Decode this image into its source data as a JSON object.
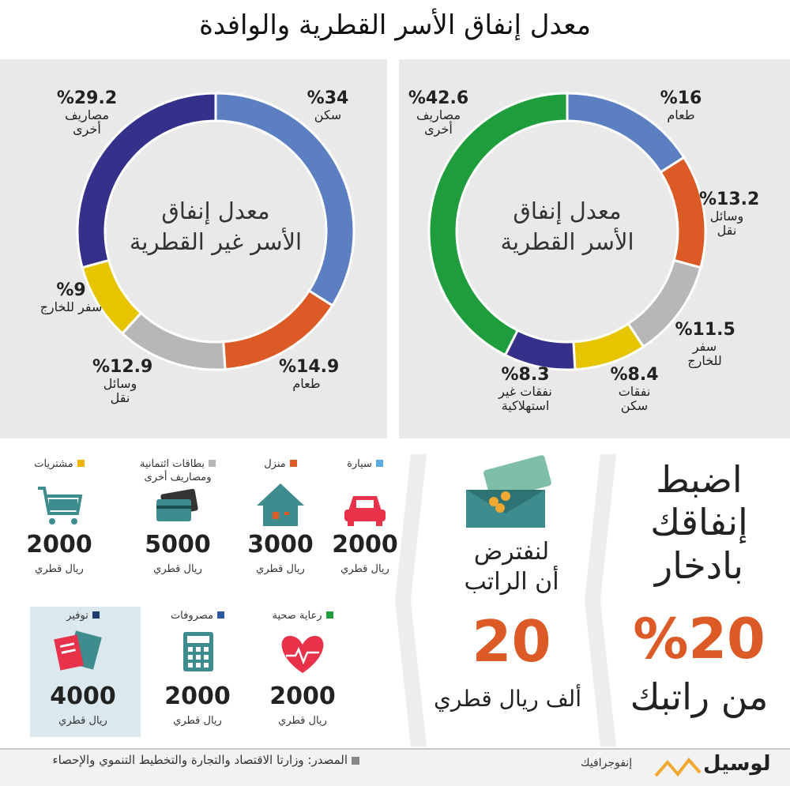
{
  "title": "معدل إنفاق الأسر القطرية والوافدة",
  "chart_data": [
    {
      "type": "pie",
      "donut": true,
      "title": [
        "معدل إنفاق",
        "الأسر غير القطرية"
      ],
      "categories": [
        "سكن",
        "طعام",
        "وسائل نقل",
        "سفر للخارج",
        "مصاريف أخرى"
      ],
      "values": [
        34,
        14.9,
        12.9,
        9,
        29.2
      ],
      "value_labels": [
        "%34",
        "%14.9",
        "%12.9",
        "%9",
        "%29.2"
      ],
      "colors": [
        "#5b7fc1",
        "#dc5a26",
        "#b9b6b9",
        "#e7c400",
        "#35318b"
      ]
    },
    {
      "type": "pie",
      "donut": true,
      "title": [
        "معدل إنفاق",
        "الأسر القطرية"
      ],
      "categories": [
        "طعام",
        "وسائل نقل",
        "سفر للخارج",
        "نفقات سكن",
        "نفقات غير استهلاكية",
        "مصاريف أخرى"
      ],
      "values": [
        16,
        13.2,
        11.5,
        8.4,
        8.3,
        42.6
      ],
      "value_labels": [
        "%16",
        "%13.2",
        "%11.5",
        "%8.4",
        "%8.3",
        "%42.6"
      ],
      "colors": [
        "#5b7fc1",
        "#dc5a26",
        "#b9b6b9",
        "#e7c400",
        "#35318b",
        "#1f9c3b"
      ]
    }
  ],
  "budget": {
    "items": [
      {
        "name": "سيارة",
        "color": "#5aaadf",
        "amount": 2000,
        "unit": "ريال قطري"
      },
      {
        "name": "منزل",
        "color": "#dc5a26",
        "amount": 3000,
        "unit": "ريال قطري"
      },
      {
        "name": "بطاقات ائتمانية ومصاريف أخرى",
        "color": "#b9b6b9",
        "amount": 5000,
        "unit": "ريال قطري"
      },
      {
        "name": "مشتريات",
        "color": "#f0b300",
        "amount": 2000,
        "unit": "ريال قطري"
      },
      {
        "name": "رعاية صحية",
        "color": "#1f9c3b",
        "amount": 2000,
        "unit": "ريال قطري"
      },
      {
        "name": "مصروفات",
        "color": "#2b59a4",
        "amount": 2000,
        "unit": "ريال قطري"
      },
      {
        "name": "توفير",
        "color": "#1d3b6e",
        "amount": 4000,
        "unit": "ريال قطري"
      }
    ]
  },
  "assumption": {
    "lines": [
      "لنفترض",
      "أن الراتب"
    ],
    "amount": 20,
    "unit": "ألف ريال قطري"
  },
  "advice": {
    "lines": [
      "اضبط",
      "إنفاقك",
      "بادخار"
    ],
    "value": "%20",
    "tail": "من راتبك"
  },
  "footer": {
    "source": "المصدر: وزارتا الاقتصاد والتجارة والتخطيط التنموي والإحصاء",
    "brand": "لوسيل",
    "section": "إنفوجرافيك"
  }
}
